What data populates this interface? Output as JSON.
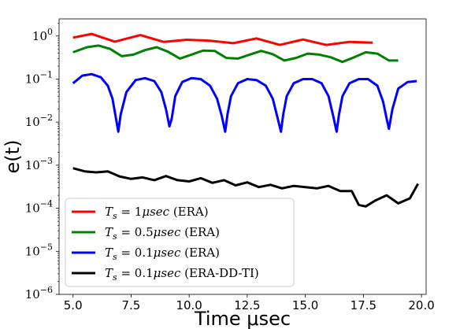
{
  "chart_data": {
    "type": "line",
    "title": "",
    "xlabel": "Time μsec",
    "ylabel": "e(t)",
    "xlim": [
      4.4,
      20.2
    ],
    "ylim": [
      1e-06,
      2.5
    ],
    "yscale": "log",
    "xticks": [
      "5.0",
      "7.5",
      "10.0",
      "12.5",
      "15.0",
      "17.5",
      "20.0"
    ],
    "yticks": [
      {
        "base": "10",
        "exp": "0",
        "value": 1
      },
      {
        "base": "10",
        "exp": "−1",
        "value": 0.1
      },
      {
        "base": "10",
        "exp": "−2",
        "value": 0.01
      },
      {
        "base": "10",
        "exp": "−3",
        "value": 0.001
      },
      {
        "base": "10",
        "exp": "−4",
        "value": 0.0001
      },
      {
        "base": "10",
        "exp": "−5",
        "value": 1e-05
      },
      {
        "base": "10",
        "exp": "−6",
        "value": 1e-06
      }
    ],
    "grid": false,
    "legend_position": "lower-left",
    "series": [
      {
        "name": "Ts = 1μsec (ERA)",
        "legend_math": "T",
        "legend_sub": "s",
        "legend_eq": " = 1",
        "legend_unit": "μsec",
        "legend_method": " (ERA)",
        "color": "#ff0000",
        "x": [
          5.0,
          5.8,
          6.8,
          7.9,
          8.9,
          9.9,
          10.9,
          11.9,
          12.9,
          13.9,
          14.9,
          15.9,
          16.9,
          17.9
        ],
        "y": [
          0.92,
          1.12,
          0.74,
          1.05,
          0.73,
          0.82,
          0.78,
          0.68,
          0.88,
          0.62,
          0.83,
          0.62,
          0.73,
          0.7
        ]
      },
      {
        "name": "Ts = 0.5μsec (ERA)",
        "legend_math": "T",
        "legend_sub": "s",
        "legend_eq": " = 0.5",
        "legend_unit": "μsec",
        "legend_method": " (ERA)",
        "color": "#008000",
        "x": [
          5.0,
          5.6,
          6.1,
          6.6,
          7.1,
          7.6,
          8.1,
          8.6,
          9.1,
          9.6,
          10.1,
          10.6,
          11.1,
          11.6,
          12.1,
          12.6,
          13.1,
          13.6,
          14.1,
          14.6,
          15.1,
          15.6,
          16.1,
          16.6,
          17.1,
          17.6,
          18.1,
          18.6,
          19.0
        ],
        "y": [
          0.42,
          0.55,
          0.6,
          0.5,
          0.34,
          0.37,
          0.47,
          0.55,
          0.43,
          0.3,
          0.37,
          0.46,
          0.45,
          0.31,
          0.3,
          0.37,
          0.45,
          0.38,
          0.27,
          0.31,
          0.39,
          0.37,
          0.32,
          0.25,
          0.32,
          0.42,
          0.39,
          0.27,
          0.27
        ]
      },
      {
        "name": "Ts = 0.1μsec (ERA)",
        "legend_math": "T",
        "legend_sub": "s",
        "legend_eq": " = 0.1",
        "legend_unit": "μsec",
        "legend_method": " (ERA)",
        "color": "#0000ff",
        "x": [
          5.0,
          5.4,
          5.8,
          6.2,
          6.5,
          6.7,
          6.85,
          6.95,
          7.05,
          7.3,
          7.7,
          8.1,
          8.5,
          8.8,
          9.0,
          9.15,
          9.25,
          9.4,
          9.7,
          10.1,
          10.5,
          10.9,
          11.2,
          11.4,
          11.55,
          11.65,
          11.8,
          12.1,
          12.5,
          12.9,
          13.3,
          13.6,
          13.8,
          13.95,
          14.05,
          14.2,
          14.5,
          14.9,
          15.3,
          15.7,
          16.0,
          16.2,
          16.35,
          16.45,
          16.6,
          16.9,
          17.3,
          17.7,
          18.1,
          18.35,
          18.5,
          18.6,
          18.75,
          19.0,
          19.4,
          19.8
        ],
        "y": [
          0.08,
          0.12,
          0.13,
          0.11,
          0.07,
          0.035,
          0.012,
          0.006,
          0.015,
          0.05,
          0.095,
          0.105,
          0.09,
          0.05,
          0.02,
          0.008,
          0.012,
          0.04,
          0.085,
          0.105,
          0.1,
          0.07,
          0.035,
          0.014,
          0.006,
          0.015,
          0.04,
          0.08,
          0.1,
          0.095,
          0.07,
          0.035,
          0.013,
          0.006,
          0.015,
          0.04,
          0.08,
          0.1,
          0.1,
          0.08,
          0.04,
          0.014,
          0.006,
          0.015,
          0.04,
          0.08,
          0.1,
          0.1,
          0.07,
          0.03,
          0.012,
          0.007,
          0.02,
          0.06,
          0.085,
          0.09
        ]
      },
      {
        "name": "Ts = 0.1μsec (ERA-DD-TI)",
        "legend_math": "T",
        "legend_sub": "s",
        "legend_eq": " = 0.1",
        "legend_unit": "μsec",
        "legend_method": " (ERA-DD-TI)",
        "color": "#000000",
        "x": [
          5.0,
          5.5,
          6.0,
          6.5,
          7.0,
          7.5,
          8.0,
          8.5,
          9.0,
          9.5,
          10.0,
          10.5,
          11.0,
          11.5,
          12.0,
          12.5,
          13.0,
          13.5,
          14.0,
          14.5,
          15.0,
          15.5,
          16.0,
          16.5,
          17.0,
          17.3,
          17.6,
          18.0,
          18.5,
          19.0,
          19.5,
          19.85
        ],
        "y": [
          0.00085,
          0.00072,
          0.00068,
          0.00072,
          0.00055,
          0.00048,
          0.00052,
          0.00045,
          0.00056,
          0.00045,
          0.00042,
          0.0005,
          0.00039,
          0.00045,
          0.00034,
          0.0004,
          0.00031,
          0.00035,
          0.00029,
          0.00033,
          0.00031,
          0.00029,
          0.00033,
          0.00025,
          0.00025,
          0.00012,
          0.00011,
          0.00015,
          0.0002,
          0.00013,
          0.00017,
          0.00037
        ]
      }
    ]
  }
}
